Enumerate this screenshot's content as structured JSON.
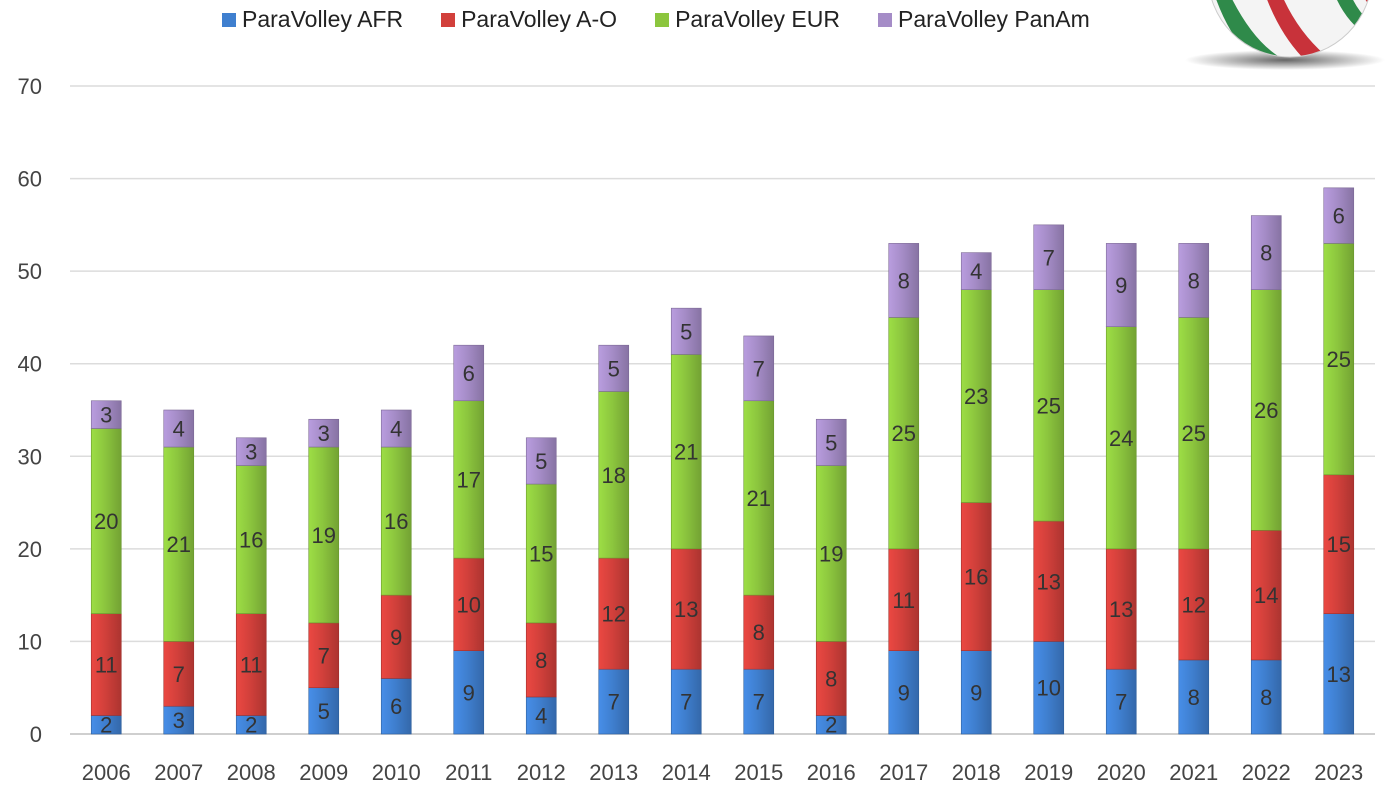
{
  "chart_data": {
    "type": "bar",
    "stacked": true,
    "categories": [
      "2006",
      "2007",
      "2008",
      "2009",
      "2010",
      "2011",
      "2012",
      "2013",
      "2014",
      "2015",
      "2016",
      "2017",
      "2018",
      "2019",
      "2020",
      "2021",
      "2022",
      "2023"
    ],
    "series": [
      {
        "name": "ParaVolley AFR",
        "color": "#3f7fcf",
        "values": [
          2,
          3,
          2,
          5,
          6,
          9,
          4,
          7,
          7,
          7,
          2,
          9,
          9,
          10,
          7,
          8,
          8,
          13
        ]
      },
      {
        "name": "ParaVolley A-O",
        "color": "#d2403b",
        "values": [
          11,
          7,
          11,
          7,
          9,
          10,
          8,
          12,
          13,
          8,
          8,
          11,
          16,
          13,
          13,
          12,
          14,
          15
        ]
      },
      {
        "name": "ParaVolley EUR",
        "color": "#8cc63e",
        "values": [
          20,
          21,
          16,
          19,
          16,
          17,
          15,
          18,
          21,
          21,
          19,
          25,
          23,
          25,
          24,
          25,
          26,
          25
        ]
      },
      {
        "name": "ParaVolley PanAm",
        "color": "#a58cc7",
        "values": [
          3,
          4,
          3,
          3,
          4,
          6,
          5,
          5,
          5,
          7,
          5,
          8,
          4,
          7,
          9,
          8,
          8,
          6
        ]
      }
    ],
    "yticks": [
      "0",
      "10",
      "20",
      "30",
      "40",
      "50",
      "60",
      "70"
    ],
    "ylim": [
      0,
      70
    ],
    "grid": true,
    "legend_position": "top",
    "title": "",
    "xlabel": "",
    "ylabel": ""
  }
}
